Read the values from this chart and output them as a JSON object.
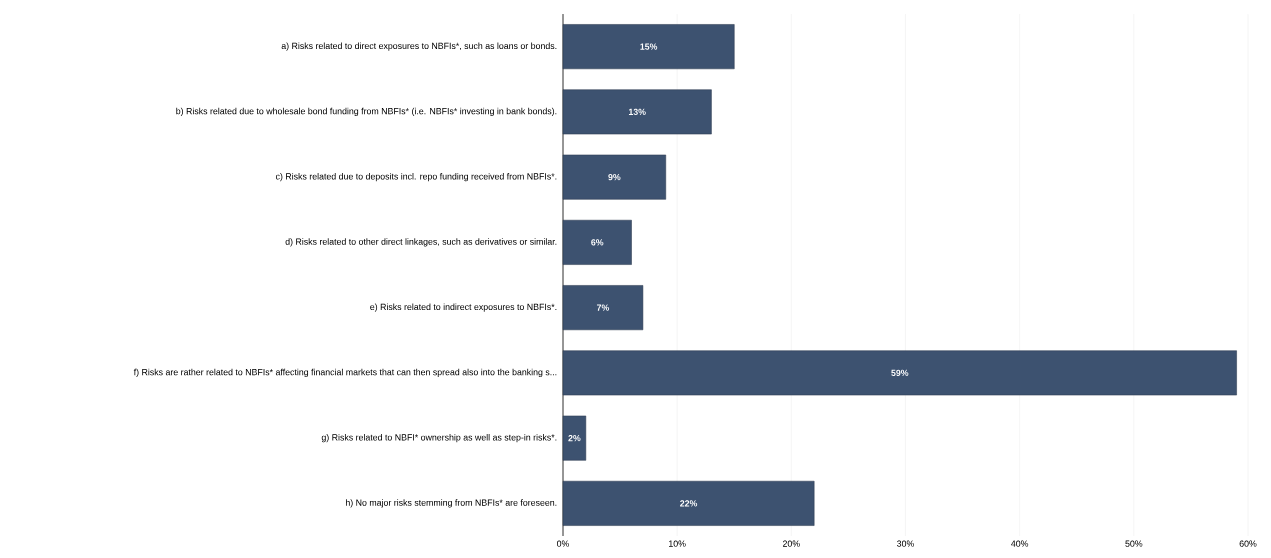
{
  "chart_data": {
    "type": "bar",
    "orientation": "horizontal",
    "categories": [
      "a) Risks related to direct exposures to NBFIs*, such as loans or bonds.",
      "b) Risks related due to wholesale bond funding from NBFIs* (i.e. NBFIs* investing in bank bonds).",
      "c) Risks related due to deposits incl. repo funding received from NBFIs*.",
      "d) Risks related to other direct linkages, such as derivatives or similar.",
      "e) Risks related to indirect exposures to NBFIs*.",
      "f) Risks are rather related to NBFIs* affecting financial markets that can then spread also into the banking s...",
      "g) Risks related to NBFI* ownership as well as step-in risks*.",
      "h) No major risks stemming from NBFIs* are foreseen."
    ],
    "values": [
      15,
      13,
      9,
      6,
      7,
      59,
      2,
      22
    ],
    "value_labels": [
      "15%",
      "13%",
      "9%",
      "6%",
      "7%",
      "59%",
      "2%",
      "22%"
    ],
    "color": "#3d5270",
    "xlim": [
      0,
      60
    ],
    "xticks": [
      {
        "value": 0,
        "label": "0%"
      },
      {
        "value": 10,
        "label": "10%"
      },
      {
        "value": 20,
        "label": "20%"
      },
      {
        "value": 30,
        "label": "30%"
      },
      {
        "value": 40,
        "label": "40%"
      },
      {
        "value": 50,
        "label": "50%"
      },
      {
        "value": 60,
        "label": "60%"
      }
    ],
    "grid": "x"
  }
}
